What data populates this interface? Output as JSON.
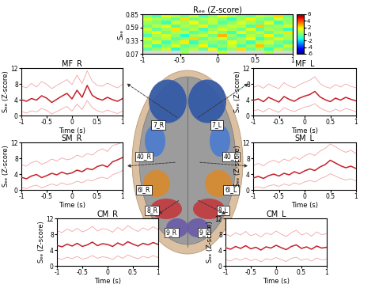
{
  "chart_data": [
    {
      "type": "heatmap",
      "title": "Rₑₑ (Z-score)",
      "y_label": "Sₑₑ",
      "x_edges": [
        -1,
        -0.875,
        -0.75,
        -0.625,
        -0.5,
        -0.375,
        -0.25,
        -0.125,
        0,
        0.125,
        0.25,
        0.375,
        0.5,
        0.625,
        0.75,
        0.875,
        1
      ],
      "y_edges": [
        0.07,
        0.135,
        0.2,
        0.265,
        0.33,
        0.395,
        0.46,
        0.525,
        0.59,
        0.655,
        0.72,
        0.785,
        0.85
      ],
      "cells": [
        [
          null,
          null,
          null,
          null,
          0.5,
          null,
          null,
          null,
          1.2,
          null,
          null,
          null,
          null,
          0.8,
          null,
          null
        ],
        [
          -0.5,
          0.3,
          1.1,
          -1.2,
          0.2,
          0.8,
          -0.3,
          1.5,
          -0.8,
          0.4,
          2.1,
          -0.2,
          0.6,
          -1.0,
          0.9,
          0.1
        ],
        [
          0.8,
          -0.9,
          0.2,
          1.4,
          -0.4,
          0.1,
          1.8,
          -0.6,
          0.3,
          1.0,
          -0.7,
          0.5,
          2.4,
          0.2,
          -0.5,
          1.1
        ],
        [
          0.1,
          1.3,
          -0.8,
          0.4,
          1.9,
          -1.1,
          0.6,
          0.2,
          -0.3,
          1.6,
          0.4,
          -0.9,
          0.7,
          1.2,
          0.0,
          -0.6
        ],
        [
          1.5,
          0.2,
          0.9,
          -0.5,
          0.3,
          2.2,
          -0.4,
          0.8,
          1.1,
          -0.2,
          0.5,
          1.7,
          -0.8,
          0.3,
          1.4,
          0.6
        ],
        [
          -0.7,
          0.6,
          1.2,
          0.3,
          -1.3,
          0.5,
          1.0,
          -0.1,
          2.6,
          0.4,
          -0.6,
          0.9,
          0.2,
          1.8,
          -0.3,
          0.7
        ],
        [
          0.4,
          1.8,
          -0.2,
          0.7,
          0.9,
          -0.5,
          0.2,
          1.3,
          0.1,
          -0.8,
          1.5,
          0.3,
          1.0,
          -0.4,
          0.8,
          2.0
        ],
        [
          1.1,
          -0.4,
          0.5,
          2.0,
          0.1,
          0.8,
          -0.9,
          0.4,
          1.2,
          0.6,
          -0.1,
          1.4,
          -0.5,
          0.7,
          0.3,
          -1.0
        ],
        [
          -0.2,
          0.9,
          1.6,
          -0.6,
          0.7,
          0.3,
          1.9,
          -0.3,
          0.5,
          1.1,
          0.8,
          -0.7,
          2.3,
          0.1,
          0.6,
          1.2
        ],
        [
          0.6,
          0.1,
          -1.0,
          1.2,
          0.4,
          1.7,
          0.0,
          0.9,
          -0.5,
          0.3,
          1.3,
          0.6,
          -0.2,
          1.5,
          -0.8,
          0.4
        ],
        [
          1.3,
          0.7,
          0.4,
          -0.3,
          2.1,
          -0.2,
          0.6,
          1.0,
          0.2,
          -1.1,
          0.5,
          1.9,
          0.3,
          -0.4,
          1.1,
          0.2
        ],
        [
          0.2,
          -0.6,
          1.4,
          0.8,
          -0.1,
          1.0,
          -0.7,
          0.3,
          1.6,
          0.8,
          0.1,
          -0.3,
          0.9,
          0.5,
          2.2,
          -0.2
        ]
      ],
      "xlim": [
        -1,
        1
      ],
      "ylim": [
        0.07,
        0.85
      ],
      "xticks": [
        -1,
        -0.5,
        0,
        0.5,
        1
      ],
      "yticks": [
        0.07,
        0.33,
        0.59,
        0.85
      ],
      "color_range": [
        -6,
        6
      ],
      "color_ticks": [
        -6,
        -4,
        -2,
        0,
        2,
        4,
        6
      ]
    },
    {
      "type": "line",
      "title": "MF_R",
      "x_label": "Time (s)",
      "y_label": "Sₑₑ (Z-score)",
      "x": [
        -1,
        -0.9,
        -0.8,
        -0.7,
        -0.6,
        -0.5,
        -0.4,
        -0.3,
        -0.2,
        -0.1,
        0,
        0.1,
        0.2,
        0.3,
        0.4,
        0.5,
        0.6,
        0.7,
        0.8,
        0.9,
        1
      ],
      "series": [
        {
          "color": "#c8202a",
          "values": [
            4.0,
            3.6,
            4.3,
            3.9,
            5.0,
            4.4,
            3.3,
            4.1,
            4.9,
            5.6,
            4.2,
            6.4,
            4.6,
            7.6,
            5.1,
            4.3,
            3.9,
            4.6,
            4.0,
            3.6,
            4.3
          ]
        },
        {
          "color": "#f2a3a6",
          "values": [
            7.4,
            7.0,
            8.1,
            7.2,
            8.6,
            7.9,
            6.8,
            7.6,
            8.3,
            9.1,
            7.8,
            10.2,
            8.1,
            11.3,
            8.7,
            7.6,
            7.4,
            8.2,
            7.5,
            7.0,
            7.9
          ]
        },
        {
          "color": "#f2a3a6",
          "values": [
            1.0,
            0.6,
            1.2,
            0.9,
            1.8,
            1.3,
            0.4,
            1.0,
            1.7,
            2.3,
            1.1,
            2.9,
            1.5,
            3.8,
            2.0,
            1.2,
            0.8,
            1.4,
            0.9,
            0.5,
            1.1
          ]
        }
      ],
      "xlim": [
        -1,
        1
      ],
      "ylim": [
        0,
        12
      ],
      "xticks": [
        -1,
        -0.5,
        0,
        0.5,
        1
      ],
      "yticks": [
        0,
        4,
        8,
        12
      ]
    },
    {
      "type": "line",
      "title": "MF_L",
      "x_label": "Time (s)",
      "y_label": "Sₑₑ (Z-score)",
      "x": [
        -1,
        -0.9,
        -0.8,
        -0.7,
        -0.6,
        -0.5,
        -0.4,
        -0.3,
        -0.2,
        -0.1,
        0,
        0.1,
        0.2,
        0.3,
        0.4,
        0.5,
        0.6,
        0.7,
        0.8,
        0.9,
        1
      ],
      "series": [
        {
          "color": "#c8202a",
          "values": [
            3.8,
            4.2,
            3.5,
            4.6,
            4.0,
            3.4,
            4.8,
            4.1,
            3.6,
            4.4,
            4.9,
            5.3,
            6.1,
            4.7,
            4.0,
            3.5,
            4.4,
            3.9,
            4.6,
            4.1,
            3.7
          ]
        },
        {
          "color": "#f2a3a6",
          "values": [
            7.1,
            7.6,
            6.9,
            8.0,
            7.3,
            6.8,
            8.3,
            7.5,
            7.0,
            7.8,
            8.4,
            8.9,
            9.8,
            8.1,
            7.3,
            6.9,
            7.8,
            7.2,
            8.0,
            7.4,
            7.0
          ]
        },
        {
          "color": "#f2a3a6",
          "values": [
            1.2,
            1.5,
            0.9,
            1.8,
            1.3,
            0.8,
            2.0,
            1.4,
            1.0,
            1.6,
            2.1,
            2.4,
            3.0,
            1.9,
            1.3,
            0.9,
            1.6,
            1.1,
            1.8,
            1.4,
            1.0
          ]
        }
      ],
      "xlim": [
        -1,
        1
      ],
      "ylim": [
        0,
        12
      ],
      "xticks": [
        -1,
        -0.5,
        0,
        0.5,
        1
      ],
      "yticks": [
        0,
        4,
        8,
        12
      ]
    },
    {
      "type": "line",
      "title": "SM_R",
      "x_label": "Time (s)",
      "y_label": "Sₑₑ (Z-score)",
      "x": [
        -1,
        -0.9,
        -0.8,
        -0.7,
        -0.6,
        -0.5,
        -0.4,
        -0.3,
        -0.2,
        -0.1,
        0,
        0.1,
        0.2,
        0.3,
        0.4,
        0.5,
        0.6,
        0.7,
        0.8,
        0.9,
        1
      ],
      "series": [
        {
          "color": "#c8202a",
          "values": [
            3.2,
            2.8,
            3.5,
            3.9,
            3.1,
            3.6,
            4.2,
            3.8,
            4.5,
            4.0,
            4.3,
            5.0,
            4.6,
            5.4,
            5.1,
            5.9,
            6.3,
            5.8,
            7.1,
            7.6,
            8.2
          ]
        },
        {
          "color": "#f2a3a6",
          "values": [
            6.4,
            6.0,
            6.9,
            7.3,
            6.5,
            7.0,
            7.8,
            7.3,
            8.1,
            7.6,
            7.9,
            8.8,
            8.3,
            9.2,
            8.8,
            9.8,
            10.4,
            9.7,
            11.2,
            11.6,
            12.0
          ]
        },
        {
          "color": "#f2a3a6",
          "values": [
            0.6,
            0.3,
            0.9,
            1.2,
            0.5,
            1.0,
            1.5,
            1.1,
            1.8,
            1.3,
            1.6,
            2.2,
            1.8,
            2.5,
            2.3,
            2.9,
            3.2,
            2.8,
            3.8,
            4.3,
            4.9
          ]
        }
      ],
      "xlim": [
        -1,
        1
      ],
      "ylim": [
        0,
        12
      ],
      "xticks": [
        -1,
        -0.5,
        0,
        0.5,
        1
      ],
      "yticks": [
        0,
        4,
        8,
        12
      ]
    },
    {
      "type": "line",
      "title": "SM_L",
      "x_label": "Time (s)",
      "y_label": "Sₑₑ (Z-score)",
      "x": [
        -1,
        -0.9,
        -0.8,
        -0.7,
        -0.6,
        -0.5,
        -0.4,
        -0.3,
        -0.2,
        -0.1,
        0,
        0.1,
        0.2,
        0.3,
        0.4,
        0.5,
        0.6,
        0.7,
        0.8,
        0.9,
        1
      ],
      "series": [
        {
          "color": "#c8202a",
          "values": [
            3.0,
            3.4,
            2.9,
            3.6,
            4.0,
            3.5,
            4.2,
            3.8,
            4.6,
            4.1,
            4.8,
            5.3,
            4.9,
            5.8,
            6.4,
            7.5,
            6.8,
            6.1,
            5.6,
            6.0,
            5.4
          ]
        },
        {
          "color": "#f2a3a6",
          "values": [
            6.2,
            6.7,
            6.1,
            7.0,
            7.5,
            6.9,
            7.8,
            7.3,
            8.3,
            7.7,
            8.6,
            9.2,
            8.7,
            9.8,
            10.5,
            11.6,
            10.9,
            10.1,
            9.5,
            10.0,
            9.2
          ]
        },
        {
          "color": "#f2a3a6",
          "values": [
            0.5,
            0.8,
            0.4,
            1.0,
            1.3,
            0.9,
            1.5,
            1.1,
            1.8,
            1.4,
            2.0,
            2.4,
            2.0,
            2.8,
            3.3,
            4.1,
            3.5,
            2.9,
            2.5,
            2.8,
            2.3
          ]
        }
      ],
      "xlim": [
        -1,
        1
      ],
      "ylim": [
        0,
        12
      ],
      "xticks": [
        -1,
        -0.5,
        0,
        0.5,
        1
      ],
      "yticks": [
        0,
        4,
        8,
        12
      ]
    },
    {
      "type": "line",
      "title": "CM_R",
      "x_label": "Time (s)",
      "y_label": "Sₑₑ (Z-score)",
      "x": [
        -1,
        -0.9,
        -0.8,
        -0.7,
        -0.6,
        -0.5,
        -0.4,
        -0.3,
        -0.2,
        -0.1,
        0,
        0.1,
        0.2,
        0.3,
        0.4,
        0.5,
        0.6,
        0.7,
        0.8,
        0.9,
        1
      ],
      "series": [
        {
          "color": "#c8202a",
          "values": [
            5.2,
            4.8,
            5.5,
            5.0,
            5.7,
            4.9,
            5.3,
            6.0,
            5.1,
            5.6,
            5.4,
            4.9,
            5.8,
            5.2,
            6.1,
            5.5,
            5.0,
            5.7,
            5.3,
            5.9,
            5.4
          ]
        },
        {
          "color": "#f2a3a6",
          "values": [
            8.9,
            8.4,
            9.3,
            8.7,
            9.5,
            8.6,
            9.1,
            10.0,
            8.8,
            9.4,
            9.2,
            8.5,
            9.7,
            8.9,
            10.2,
            9.3,
            8.7,
            9.6,
            9.0,
            9.9,
            9.2
          ]
        },
        {
          "color": "#f2a3a6",
          "values": [
            2.0,
            1.6,
            2.2,
            1.8,
            2.4,
            1.7,
            2.0,
            2.6,
            1.9,
            2.3,
            2.1,
            1.6,
            2.5,
            1.9,
            2.8,
            2.2,
            1.8,
            2.4,
            2.0,
            2.6,
            2.1
          ]
        }
      ],
      "xlim": [
        -1,
        1
      ],
      "ylim": [
        0,
        12
      ],
      "xticks": [
        -1,
        -0.5,
        0,
        0.5,
        1
      ],
      "yticks": [
        0,
        4,
        8,
        12
      ]
    },
    {
      "type": "line",
      "title": "CM_L",
      "x_label": "Time (s)",
      "y_label": "Sₑₑ (Z-score)",
      "x": [
        -1,
        -0.9,
        -0.8,
        -0.7,
        -0.6,
        -0.5,
        -0.4,
        -0.3,
        -0.2,
        -0.1,
        0,
        0.1,
        0.2,
        0.3,
        0.4,
        0.5,
        0.6,
        0.7,
        0.8,
        0.9,
        1
      ],
      "series": [
        {
          "color": "#c8202a",
          "values": [
            4.6,
            4.2,
            4.9,
            4.4,
            5.1,
            4.3,
            4.7,
            4.0,
            4.8,
            4.5,
            5.2,
            4.6,
            4.1,
            4.9,
            5.3,
            4.4,
            4.8,
            4.2,
            5.0,
            4.5,
            4.7
          ]
        },
        {
          "color": "#f2a3a6",
          "values": [
            8.0,
            7.5,
            8.4,
            7.8,
            8.7,
            7.6,
            8.1,
            7.3,
            8.3,
            7.9,
            8.8,
            8.0,
            7.4,
            8.4,
            9.0,
            7.8,
            8.3,
            7.5,
            8.6,
            7.9,
            8.1
          ]
        },
        {
          "color": "#f2a3a6",
          "values": [
            1.6,
            1.2,
            1.9,
            1.4,
            2.0,
            1.3,
            1.7,
            1.0,
            1.8,
            1.5,
            2.1,
            1.6,
            1.1,
            1.9,
            2.2,
            1.4,
            1.8,
            1.2,
            2.0,
            1.5,
            1.7
          ]
        }
      ],
      "xlim": [
        -1,
        1
      ],
      "ylim": [
        0,
        12
      ],
      "xticks": [
        -1,
        -0.5,
        0,
        0.5,
        1
      ],
      "yticks": [
        0,
        4,
        8,
        12
      ]
    }
  ],
  "diagram": {
    "labels": [
      "7_R",
      "7_L",
      "40_R",
      "40_L",
      "6l_R",
      "6l_L",
      "8_R",
      "8_L",
      "9_R",
      "9_L"
    ]
  }
}
